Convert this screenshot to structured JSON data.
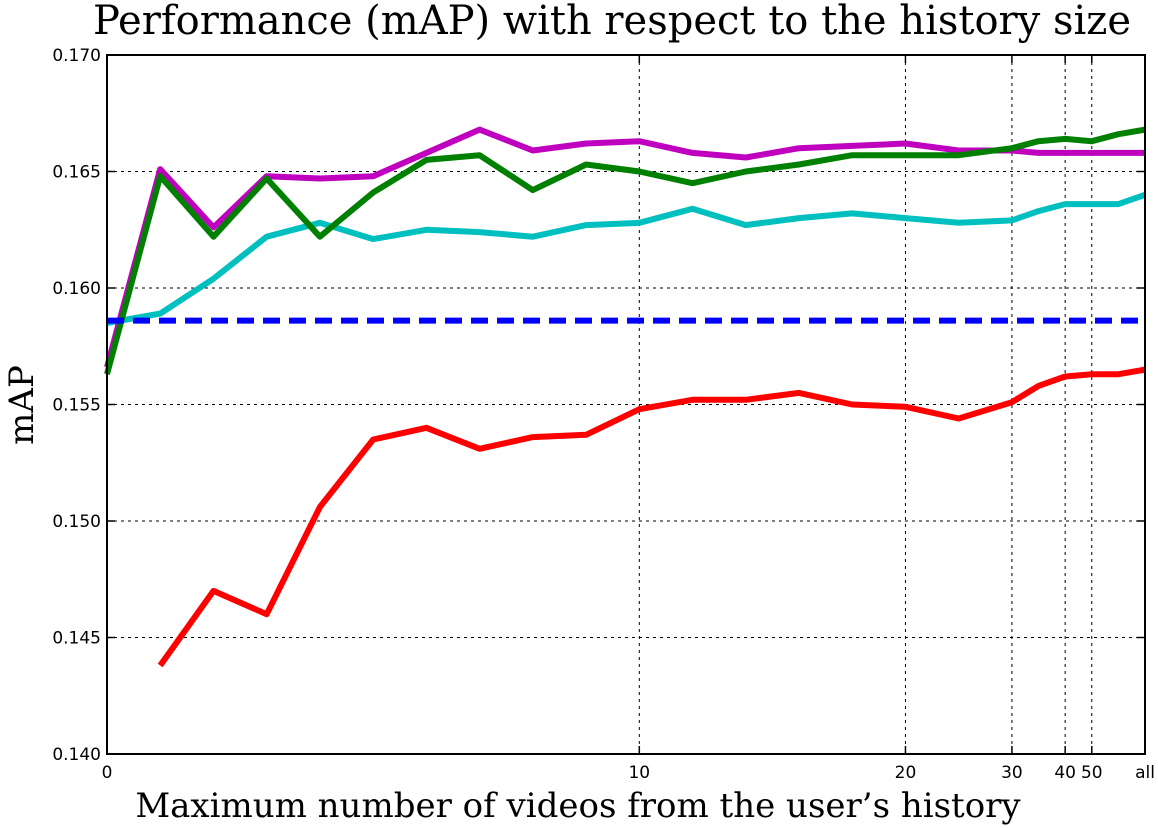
{
  "chart_data": {
    "type": "line",
    "title": "Performance (mAP) with respect to the history size",
    "xlabel": "Maximum number of videos from the user’s history",
    "ylabel": "mAP",
    "ylim": [
      0.14,
      0.17
    ],
    "xlim": [
      0,
      39
    ],
    "x_ticks": [
      {
        "x": 0,
        "label": "0"
      },
      {
        "x": 20,
        "label": "10"
      },
      {
        "x": 30,
        "label": "20"
      },
      {
        "x": 34,
        "label": "30"
      },
      {
        "x": 36,
        "label": "40"
      },
      {
        "x": 37,
        "label": "50"
      },
      {
        "x": 39,
        "label": "all"
      }
    ],
    "y_ticks": [
      {
        "y": 0.14,
        "label": "0.140"
      },
      {
        "y": 0.145,
        "label": "0.145"
      },
      {
        "y": 0.15,
        "label": "0.150"
      },
      {
        "y": 0.155,
        "label": "0.155"
      },
      {
        "y": 0.16,
        "label": "0.160"
      },
      {
        "y": 0.165,
        "label": "0.165"
      },
      {
        "y": 0.17,
        "label": "0.170"
      }
    ],
    "grid": true,
    "series": [
      {
        "color": "#ff0000",
        "style": "solid",
        "x": [
          2,
          4,
          6,
          8,
          10,
          12,
          14,
          16,
          18,
          20,
          22,
          24,
          26,
          28,
          30,
          32,
          34,
          35,
          36,
          37,
          38,
          39
        ],
        "y": [
          0.1438,
          0.147,
          0.146,
          0.1506,
          0.1535,
          0.154,
          0.1531,
          0.1536,
          0.1537,
          0.1548,
          0.1552,
          0.1552,
          0.1555,
          0.155,
          0.1549,
          0.1544,
          0.1551,
          0.1558,
          0.1562,
          0.1563,
          0.1563,
          0.1565
        ]
      },
      {
        "color": "#00bfbf",
        "style": "solid",
        "x": [
          0,
          2,
          4,
          6,
          8,
          10,
          12,
          14,
          16,
          18,
          20,
          22,
          24,
          26,
          28,
          30,
          32,
          34,
          35,
          36,
          37,
          38,
          39
        ],
        "y": [
          0.1585,
          0.1589,
          0.1604,
          0.1622,
          0.1628,
          0.1621,
          0.1625,
          0.1624,
          0.1622,
          0.1627,
          0.1628,
          0.1634,
          0.1627,
          0.163,
          0.1632,
          0.163,
          0.1628,
          0.1629,
          0.1633,
          0.1636,
          0.1636,
          0.1636,
          0.164
        ]
      },
      {
        "color": "#bf00bf",
        "style": "solid",
        "x": [
          0,
          2,
          4,
          6,
          8,
          10,
          12,
          14,
          16,
          18,
          20,
          22,
          24,
          26,
          28,
          30,
          32,
          34,
          35,
          36,
          37,
          38,
          39
        ],
        "y": [
          0.1566,
          0.1651,
          0.1626,
          0.1648,
          0.1647,
          0.1648,
          0.1658,
          0.1668,
          0.1659,
          0.1662,
          0.1663,
          0.1658,
          0.1656,
          0.166,
          0.1661,
          0.1662,
          0.1659,
          0.1659,
          0.1658,
          0.1658,
          0.1658,
          0.1658,
          0.1658
        ]
      },
      {
        "color": "#008000",
        "style": "solid",
        "x": [
          0,
          2,
          4,
          6,
          8,
          10,
          12,
          14,
          16,
          18,
          20,
          22,
          24,
          26,
          28,
          30,
          32,
          34,
          35,
          36,
          37,
          38,
          39
        ],
        "y": [
          0.1563,
          0.1648,
          0.1622,
          0.1647,
          0.1622,
          0.1641,
          0.1655,
          0.1657,
          0.1642,
          0.1653,
          0.165,
          0.1645,
          0.165,
          0.1653,
          0.1657,
          0.1657,
          0.1657,
          0.166,
          0.1663,
          0.1664,
          0.1663,
          0.1666,
          0.1668
        ]
      },
      {
        "color": "#0000ff",
        "style": "dashed",
        "x": [
          0,
          39
        ],
        "y": [
          0.1586,
          0.1586
        ]
      }
    ]
  }
}
